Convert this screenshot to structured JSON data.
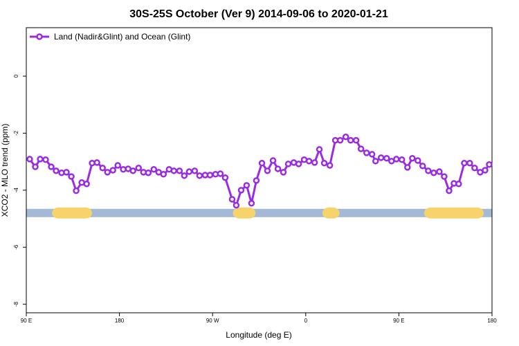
{
  "chart_data": {
    "type": "line",
    "title": "30S-25S October (Ver 9)   2014-09-06 to 2020-01-21",
    "xlabel": "Longitude (deg E)",
    "ylabel": "XCO2 - MLO trend (ppm)",
    "xlim": [
      90,
      540
    ],
    "ylim": [
      -8.3,
      1.7
    ],
    "xticks": [
      {
        "value": 90,
        "label": "90 E"
      },
      {
        "value": 180,
        "label": "180"
      },
      {
        "value": 270,
        "label": "90 W"
      },
      {
        "value": 360,
        "label": "0"
      },
      {
        "value": 450,
        "label": "90 E"
      },
      {
        "value": 540,
        "label": "180"
      }
    ],
    "yticks": [
      0,
      -2,
      -4,
      -6,
      -8
    ],
    "legend": "top-left",
    "x": [
      93.3,
      98.7,
      103.4,
      108.7,
      114.1,
      118.8,
      124.1,
      128.8,
      133.5,
      138.2,
      143.6,
      148.3,
      153.6,
      158.3,
      163.7,
      168.4,
      173.7,
      178.4,
      183.7,
      188.4,
      193.1,
      198.5,
      203.2,
      207.9,
      213.2,
      217.9,
      222.6,
      228,
      232.6,
      238,
      242.7,
      247.4,
      252.7,
      257.4,
      262.8,
      267.5,
      272.8,
      277.5,
      282.2,
      288.9,
      292.9,
      297.6,
      302.9,
      307.6,
      312.3,
      317.7,
      323,
      328.4,
      333.1,
      338.4,
      343.1,
      348.5,
      353.2,
      358.5,
      363.2,
      368.6,
      373.2,
      377.9,
      383.3,
      388.6,
      393.3,
      398.7,
      403.4,
      408.7,
      413.4,
      418.8,
      424.1,
      427.5,
      432.8,
      438.2,
      442.9,
      447.6,
      452.9,
      458.3,
      463,
      468.3,
      473,
      478.4,
      483.7,
      489.1,
      493.8,
      498.5,
      503.2,
      507.8,
      513.2,
      518.5,
      523.2,
      528.6,
      533.3,
      537.3
    ],
    "series": [
      {
        "name": "Land (Nadir&Glint) and Ocean (Glint)",
        "color": "#9b2be2",
        "values": [
          -2.91,
          -3.18,
          -2.91,
          -2.93,
          -3.18,
          -3.32,
          -3.39,
          -3.37,
          -3.52,
          -4.02,
          -3.73,
          -3.78,
          -3.05,
          -3.03,
          -3.22,
          -3.37,
          -3.3,
          -3.13,
          -3.27,
          -3.25,
          -3.32,
          -3.22,
          -3.37,
          -3.39,
          -3.27,
          -3.37,
          -3.44,
          -3.27,
          -3.32,
          -3.32,
          -3.49,
          -3.35,
          -3.32,
          -3.49,
          -3.47,
          -3.47,
          -3.44,
          -3.42,
          -3.56,
          -4.32,
          -4.53,
          -4.0,
          -3.83,
          -4.46,
          -3.66,
          -3.05,
          -3.32,
          -2.96,
          -3.25,
          -3.37,
          -3.08,
          -3.03,
          -3.08,
          -2.93,
          -2.98,
          -3.03,
          -2.57,
          -3.05,
          -3.13,
          -2.25,
          -2.25,
          -2.13,
          -2.25,
          -2.25,
          -2.55,
          -2.69,
          -2.74,
          -2.98,
          -2.86,
          -2.88,
          -2.98,
          -2.91,
          -2.93,
          -3.2,
          -2.88,
          -2.96,
          -3.15,
          -3.32,
          -3.39,
          -3.35,
          -3.52,
          -4.02,
          -3.76,
          -3.78,
          -3.05,
          -3.05,
          -3.22,
          -3.37,
          -3.3,
          -3.1
        ]
      }
    ],
    "band": {
      "y": -4.8,
      "color": "#a4b9d6",
      "highlight_color": "#f7d36b",
      "highlights": [
        [
          114.8,
          153.6
        ],
        [
          289.6,
          311.6
        ],
        [
          376,
          392.7
        ],
        [
          474.4,
          532
        ]
      ]
    }
  }
}
